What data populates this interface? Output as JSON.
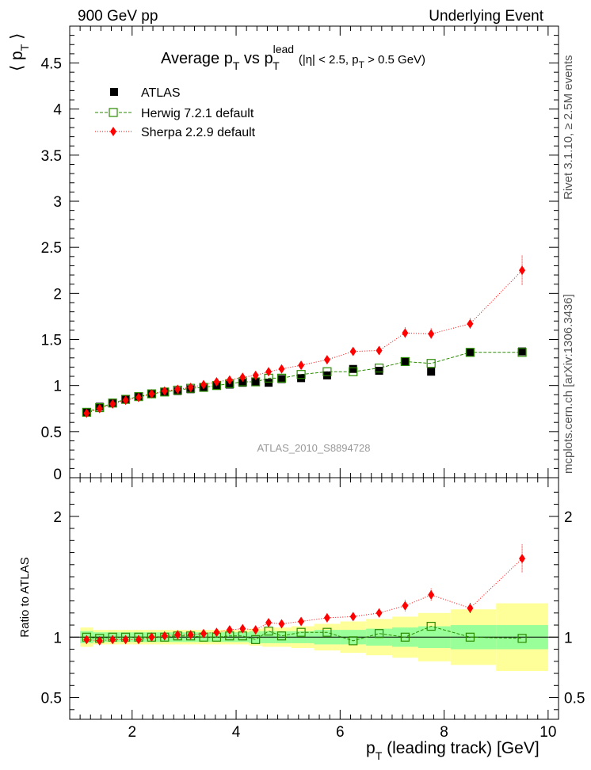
{
  "header": {
    "left": "900 GeV pp",
    "right": "Underlying Event",
    "plot_title": "Average p_T vs p_T^lead (|η| < 2.5, p_T > 0.5 GeV)"
  },
  "side_labels": {
    "rivet": "Rivet 3.1.10, ≥ 2.5M events",
    "mcplots": "mcplots.cern.ch [arXiv:1306.3436]"
  },
  "watermark": "ATLAS_2010_S8894728",
  "axes": {
    "ylabel_main": "⟨ p_T ⟩",
    "ylabel_ratio": "Ratio to ATLAS",
    "xlabel": "p_T (leading track) [GeV]"
  },
  "legend": [
    {
      "name": "ATLAS",
      "color": "#000000",
      "marker": "filled-square"
    },
    {
      "name": "Herwig 7.2.1 default",
      "color": "#2a8a00",
      "marker": "open-square"
    },
    {
      "name": "Sherpa 2.2.9 default",
      "color": "#ff0000",
      "marker": "filled-diamond"
    }
  ],
  "chart_data": [
    {
      "type": "scatter",
      "panel": "main",
      "xlim": [
        0.8,
        10.2
      ],
      "ylim": [
        0,
        4.9
      ],
      "yticks": [
        0.5,
        1,
        1.5,
        2,
        2.5,
        3,
        3.5,
        4,
        4.5
      ],
      "x": [
        1.125,
        1.375,
        1.625,
        1.875,
        2.125,
        2.375,
        2.625,
        2.875,
        3.125,
        3.375,
        3.625,
        3.875,
        4.125,
        4.375,
        4.625,
        4.875,
        5.25,
        5.75,
        6.25,
        6.75,
        7.25,
        7.75,
        8.5,
        9.5
      ],
      "series": [
        {
          "name": "ATLAS",
          "values": [
            0.71,
            0.77,
            0.81,
            0.85,
            0.88,
            0.91,
            0.93,
            0.94,
            0.96,
            0.98,
            1.0,
            1.01,
            1.03,
            1.04,
            1.03,
            1.07,
            1.08,
            1.11,
            1.18,
            1.16,
            1.26,
            1.15,
            1.36,
            1.37
          ]
        },
        {
          "name": "Herwig 7.2.1 default",
          "values": [
            0.71,
            0.76,
            0.81,
            0.85,
            0.88,
            0.91,
            0.93,
            0.95,
            0.97,
            0.98,
            1.0,
            1.02,
            1.04,
            1.04,
            1.08,
            1.08,
            1.12,
            1.15,
            1.15,
            1.19,
            1.26,
            1.24,
            1.36,
            1.36
          ]
        },
        {
          "name": "Sherpa 2.2.9 default",
          "values": [
            0.7,
            0.75,
            0.8,
            0.84,
            0.87,
            0.91,
            0.94,
            0.96,
            0.98,
            1.01,
            1.04,
            1.06,
            1.09,
            1.11,
            1.15,
            1.18,
            1.22,
            1.28,
            1.37,
            1.38,
            1.57,
            1.56,
            1.67,
            2.25
          ]
        }
      ],
      "sherpa_errors": [
        0.02,
        0.02,
        0.02,
        0.02,
        0.02,
        0.02,
        0.02,
        0.02,
        0.02,
        0.02,
        0.02,
        0.02,
        0.03,
        0.03,
        0.03,
        0.03,
        0.03,
        0.04,
        0.04,
        0.04,
        0.06,
        0.06,
        0.06,
        0.16
      ]
    },
    {
      "type": "scatter",
      "panel": "ratio",
      "ylim": [
        0.32,
        2.32
      ],
      "yticks": [
        0.5,
        1,
        2
      ],
      "series": [
        {
          "name": "Herwig 7.2.1 default",
          "values": [
            1.0,
            0.99,
            1.0,
            1.0,
            1.0,
            1.0,
            1.0,
            1.01,
            1.01,
            1.0,
            1.0,
            1.01,
            1.01,
            0.98,
            1.05,
            1.01,
            1.04,
            1.04,
            0.97,
            1.03,
            1.0,
            1.09,
            1.0,
            0.99
          ]
        },
        {
          "name": "Sherpa 2.2.9 default",
          "values": [
            0.98,
            0.97,
            0.98,
            0.98,
            0.98,
            1.0,
            1.01,
            1.02,
            1.02,
            1.03,
            1.04,
            1.06,
            1.07,
            1.06,
            1.12,
            1.11,
            1.13,
            1.16,
            1.17,
            1.2,
            1.26,
            1.35,
            1.24,
            1.65
          ]
        }
      ],
      "band_inner": [
        0.05,
        0.04,
        0.04,
        0.04,
        0.04,
        0.04,
        0.04,
        0.04,
        0.04,
        0.04,
        0.04,
        0.04,
        0.04,
        0.05,
        0.05,
        0.05,
        0.05,
        0.06,
        0.06,
        0.07,
        0.08,
        0.09,
        0.1,
        0.1
      ],
      "band_outer": [
        0.08,
        0.06,
        0.06,
        0.06,
        0.06,
        0.06,
        0.06,
        0.06,
        0.06,
        0.06,
        0.06,
        0.06,
        0.06,
        0.07,
        0.08,
        0.08,
        0.09,
        0.11,
        0.13,
        0.15,
        0.17,
        0.2,
        0.23,
        0.28
      ]
    }
  ]
}
